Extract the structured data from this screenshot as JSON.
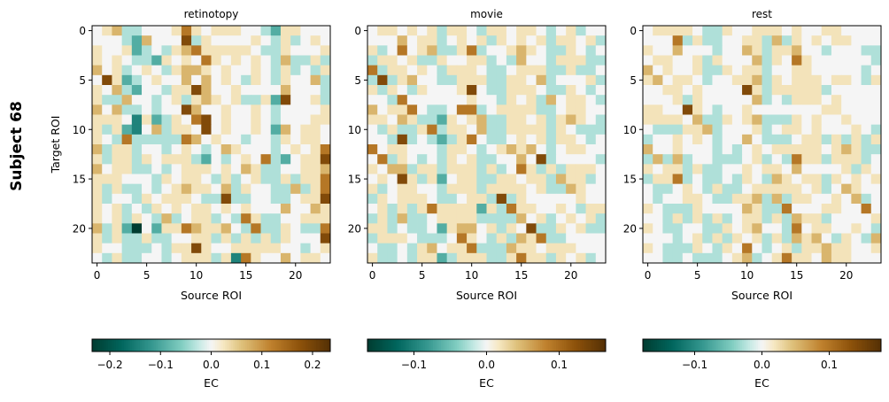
{
  "figure": {
    "suptitle": "Subject 68",
    "ylabel": "Target ROI"
  },
  "level_values": [
    -1,
    -0.6,
    -0.4,
    -0.15,
    0,
    0.12,
    0.3,
    0.55,
    0.8
  ],
  "colormap": {
    "name": "BrBG",
    "stops": [
      [
        -1,
        "#003c30"
      ],
      [
        -0.75,
        "#01665e"
      ],
      [
        -0.5,
        "#35978f"
      ],
      [
        -0.25,
        "#80cdc1"
      ],
      [
        -0.1,
        "#c7eae5"
      ],
      [
        0,
        "#f5f5f5"
      ],
      [
        0.1,
        "#f6e8c3"
      ],
      [
        0.25,
        "#dfc27d"
      ],
      [
        0.5,
        "#bf812d"
      ],
      [
        0.75,
        "#8c510a"
      ],
      [
        1,
        "#543005"
      ]
    ]
  },
  "chart_data": [
    {
      "type": "heatmap",
      "title": "retinotopy",
      "xlabel": "Source ROI",
      "ylabel": "Target ROI",
      "xticks": [
        "0",
        "5",
        "10",
        "15",
        "20"
      ],
      "yticks": [
        "0",
        "5",
        "10",
        "15",
        "20"
      ],
      "n": 24,
      "vmax": 0.235,
      "colorbar": {
        "label": "EC",
        "ticks": [
          -0.2,
          -0.1,
          0.0,
          0.1,
          0.2
        ],
        "tick_labels": [
          "−0.2",
          "−0.1",
          "0.0",
          "0.1",
          "0.2"
        ]
      },
      "z_levels": [
        "456334445754555443255444",
        "444326444835444454353454",
        "544523435675555543354445",
        "545433254547545454363353",
        "645345435665454454353435",
        "485234544646454354354463",
        "546324435586445444464443",
        "533644345356545335284453",
        "646334344864454454344445",
        "555415235478454454344455",
        "535214635548454454264554",
        "543733333764544344354554",
        "635534434543465444345457",
        "535535455532434547324558",
        "645533434555454653344556",
        "555444354554353453353557",
        "535334345655463544336357",
        "534435455543383344334558",
        "545343545455454544464465",
        "545354363455343753344555",
        "635204255765564373354337",
        "535335334455353535354448",
        "544333435585445555544345",
        "435334434555351754464554"
      ]
    },
    {
      "type": "heatmap",
      "title": "movie",
      "xlabel": "Source ROI",
      "xticks": [
        "0",
        "5",
        "10",
        "15",
        "20"
      ],
      "yticks": [
        "0",
        "5",
        "10",
        "15",
        "20"
      ],
      "n": 24,
      "vmax": 0.164,
      "colorbar": {
        "label": "EC",
        "ticks": [
          -0.1,
          0.0,
          0.1
        ],
        "tick_labels": [
          "−0.1",
          "0.0",
          "0.1"
        ]
      },
      "z_levels": [
        "455454535543554554345344",
        "444645534545354545355453",
        "534745633573445654335434",
        "355453354455343644355533",
        "735545435554334555335334",
        "383564433555335546344453",
        "535435444584335554335434",
        "443744444454435453645543",
        "645574334773455553345544",
        "554653325456335545356543",
        "435335735546335555354333",
        "443834323574334545355434",
        "745544435543456564345544",
        "473543435453344648344443",
        "546635535553534753535554",
        "454853524553355455365534",
        "534554435553555545336544",
        "354555433455383544444544",
        "453535755552537554454355",
        "353633455553333645345453",
        "553433425664535483354533",
        "355543334754353657334444",
        "433435645573336554555444",
        "533435523555335755354534"
      ]
    },
    {
      "type": "heatmap",
      "title": "rest",
      "xlabel": "Source ROI",
      "xticks": [
        "0",
        "5",
        "10",
        "15",
        "20"
      ],
      "yticks": [
        "0",
        "5",
        "10",
        "15",
        "20"
      ],
      "n": 24,
      "vmax": 0.177,
      "colorbar": {
        "label": "EC",
        "ticks": [
          -0.1,
          0.0,
          0.1
        ],
        "tick_labels": [
          "−0.1",
          "0.0",
          "0.1"
        ]
      },
      "z_levels": [
        "455554335445554544554444",
        "444735334455363545455444",
        "544644434465355644344433",
        "455445354446354754444443",
        "645445335455344554444434",
        "564554344556354555455435",
        "445545444485355555344444",
        "444535444446343555454444",
        "554485434454444444554444",
        "555546335456333545445444",
        "433355634445345545444543",
        "344545434464333455353535",
        "644544434345455555456533",
        "363634433345343755355534",
        "545535334454554644445354",
        "355734334354365455354545",
        "433454353345555545346544",
        "434455433556363554454634",
        "543335444465337444554474",
        "443535353455353655344445",
        "543344335456443745544543",
        "444345353545353656435436",
        "543335435474345355655445",
        "443343334563457554655444"
      ]
    }
  ]
}
